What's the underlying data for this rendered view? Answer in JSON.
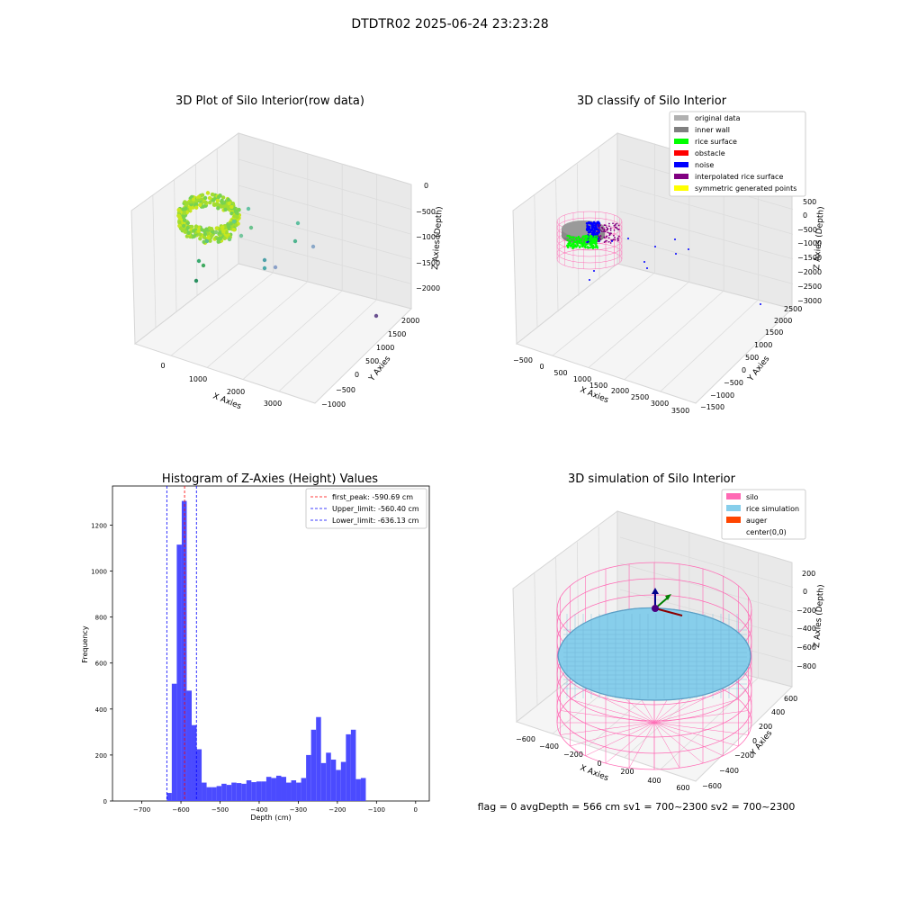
{
  "figure": {
    "suptitle": "DTDTR02 2025-06-24 23:23:28",
    "footer": "flag = 0     avgDepth = 566 cm  sv1 = 700~2300  sv2 = 700~2300"
  },
  "colors": {
    "original": "#b0b0b0",
    "inner_wall": "#808080",
    "rice_surface": "#00ff00",
    "obstacle": "#ff0000",
    "noise": "#0000ff",
    "interpolated": "#800080",
    "symmetric": "#ffff00",
    "silo": "#ff69b4",
    "rice_sim": "#87ceeb",
    "auger": "#ff4500",
    "hist_bar": "#4b4bff"
  },
  "chart_data": [
    {
      "type": "scatter",
      "title": "3D Plot of Silo Interior(row data)",
      "xlabel": "X Axies",
      "ylabel": "Y Axies",
      "zlabel": "Z Axies (Depth)",
      "x_ticks": [
        "0",
        "1000",
        "2000",
        "3000"
      ],
      "y_ticks": [
        "−1000",
        "−500",
        "0",
        "500",
        "1000",
        "1500",
        "2000"
      ],
      "z_ticks": [
        "0",
        "−500",
        "−1000",
        "−1500",
        "−2000"
      ]
    },
    {
      "type": "scatter",
      "title": "3D classify of Silo Interior",
      "xlabel": "X Axies",
      "ylabel": "Y Axies",
      "zlabel": "Z Axies (Depth)",
      "x_ticks": [
        "−500",
        "0",
        "500",
        "1000",
        "1500",
        "2000",
        "2500",
        "3000",
        "3500"
      ],
      "y_ticks": [
        "−1500",
        "−1000",
        "−500",
        "0",
        "500",
        "1000",
        "1500",
        "2000",
        "2500"
      ],
      "z_ticks": [
        "500",
        "0",
        "−500",
        "−1000",
        "−1500",
        "−2000",
        "−2500",
        "−3000"
      ],
      "legend": [
        "original data",
        "inner wall",
        "rice surface",
        "obstacle",
        "noise",
        "interpolated rice surface",
        "symmetric generated points"
      ]
    },
    {
      "type": "bar",
      "title": "Histogram of Z-Axies (Height) Values",
      "xlabel": "Depth (cm)",
      "ylabel": "Frequency",
      "xlim": [
        -775,
        35
      ],
      "ylim": [
        0,
        1370
      ],
      "x_ticks": [
        -700,
        -600,
        -500,
        -400,
        -300,
        -200,
        -100,
        0
      ],
      "x_tick_labels": [
        "−700",
        "−600",
        "−500",
        "−400",
        "−300",
        "−200",
        "−100",
        "0"
      ],
      "y_ticks": [
        0,
        200,
        400,
        600,
        800,
        1000,
        1200
      ],
      "bin_start": -636.13,
      "bin_width": 12.72,
      "values": [
        35,
        510,
        1115,
        1305,
        480,
        330,
        225,
        80,
        60,
        60,
        65,
        75,
        70,
        80,
        78,
        75,
        90,
        82,
        85,
        85,
        105,
        100,
        110,
        105,
        80,
        90,
        80,
        100,
        200,
        310,
        365,
        165,
        210,
        180,
        135,
        170,
        290,
        310,
        95,
        100
      ],
      "lines": [
        {
          "label": "first_peak: -590.69 cm",
          "x": -590.69,
          "color": "#ff0000"
        },
        {
          "label": "Upper_limit: -560.40 cm",
          "x": -560.4,
          "color": "#0000ff"
        },
        {
          "label": "Lower_limit: -636.13 cm",
          "x": -636.13,
          "color": "#0000ff"
        }
      ]
    },
    {
      "type": "scatter",
      "title": "3D simulation of Silo Interior",
      "xlabel": "X Axies",
      "ylabel": "Y Axies",
      "zlabel": "Z Axies (Depth)",
      "x_ticks": [
        "−600",
        "−400",
        "−200",
        "0",
        "200",
        "400",
        "600"
      ],
      "y_ticks": [
        "−600",
        "−400",
        "−200",
        "0",
        "200",
        "400",
        "600"
      ],
      "z_ticks": [
        "200",
        "0",
        "−200",
        "−400",
        "−600",
        "−800"
      ],
      "legend": [
        "silo",
        "rice simulation",
        "auger",
        "center(0,0)"
      ]
    }
  ]
}
